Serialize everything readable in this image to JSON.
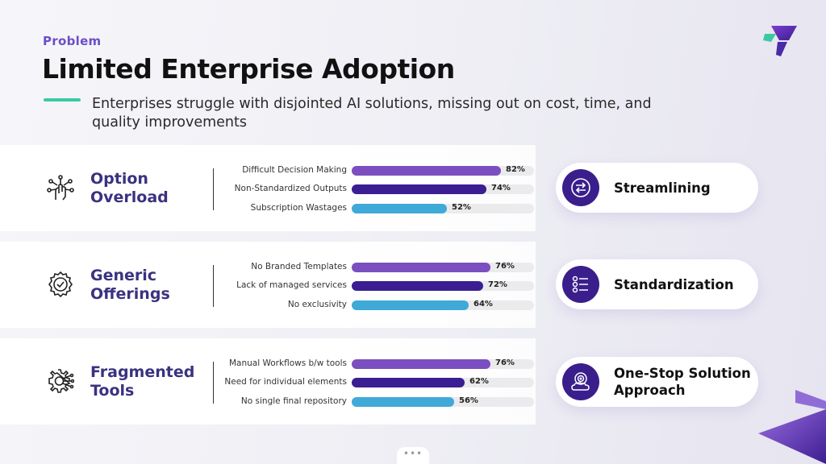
{
  "header": {
    "eyebrow": "Problem",
    "title": "Limited Enterprise Adoption",
    "subtitle": "Enterprises struggle with disjointed AI solutions, missing out on cost, time, and quality improvements"
  },
  "colors": {
    "accent": "#6b4fc8",
    "series_1": "#7b4fbf",
    "series_2": "#3b1e91",
    "series_3": "#3fa9d8",
    "teal": "#3bc9a5"
  },
  "pager": {
    "label": "•••"
  },
  "chart_data": [
    {
      "type": "bar",
      "title": "Option Overload",
      "categories": [
        "Difficult Decision Making",
        "Non-Standardized Outputs",
        "Subscription Wastages"
      ],
      "values": [
        82,
        74,
        52
      ],
      "value_labels": [
        "82%",
        "74%",
        "52%"
      ],
      "xlim": [
        0,
        100
      ],
      "icon": "network-hand-icon",
      "solution": "Streamlining",
      "solution_icon": "exchange-arrows-icon"
    },
    {
      "type": "bar",
      "title": "Generic Offerings",
      "categories": [
        "No Branded Templates",
        "Lack of managed services",
        "No exclusivity"
      ],
      "values": [
        76,
        72,
        64
      ],
      "value_labels": [
        "76%",
        "72%",
        "64%"
      ],
      "xlim": [
        0,
        100
      ],
      "icon": "gear-check-icon",
      "solution": "Standardization",
      "solution_icon": "checklist-icon"
    },
    {
      "type": "bar",
      "title": "Fragmented Tools",
      "categories": [
        "Manual Workflows b/w tools",
        "Need for individual elements",
        "No single final repository"
      ],
      "values": [
        76,
        62,
        56
      ],
      "value_labels": [
        "76%",
        "62%",
        "56%"
      ],
      "xlim": [
        0,
        100
      ],
      "icon": "gear-circuit-icon",
      "solution": "One-Stop Solution Approach",
      "solution_icon": "target-cloud-icon"
    }
  ]
}
